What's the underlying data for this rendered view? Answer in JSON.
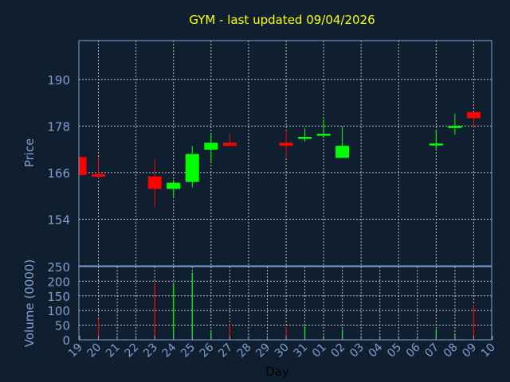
{
  "chart_data": [
    {
      "type": "candlestick",
      "title": "GYM - last updated 09/04/2026",
      "ylabel": "Price",
      "ylim": [
        142,
        200
      ],
      "yticks": [
        154,
        166,
        178,
        190
      ],
      "grid": true,
      "colors": {
        "up": "#00ff00",
        "down": "#ff0000",
        "title": "#ffff00",
        "axis": "#7f9fcf",
        "background": "#0f1f30"
      },
      "categories": [
        "19",
        "20",
        "21",
        "22",
        "23",
        "24",
        "25",
        "26",
        "27",
        "28",
        "29",
        "30",
        "31",
        "01",
        "02",
        "03",
        "04",
        "05",
        "06",
        "07",
        "08",
        "09",
        "10"
      ],
      "candles": [
        {
          "day": "19",
          "open": 170.0,
          "high": 170.0,
          "low": 165.4,
          "close": 165.4
        },
        {
          "day": "20",
          "open": 165.6,
          "high": 170.0,
          "low": 164.4,
          "close": 164.9
        },
        {
          "day": "23",
          "open": 165.0,
          "high": 169.4,
          "low": 157.0,
          "close": 161.8
        },
        {
          "day": "24",
          "open": 161.8,
          "high": 164.1,
          "low": 159.5,
          "close": 163.4
        },
        {
          "day": "25",
          "open": 163.6,
          "high": 172.9,
          "low": 162.2,
          "close": 170.8
        },
        {
          "day": "26",
          "open": 171.9,
          "high": 176.0,
          "low": 168.5,
          "close": 173.7
        },
        {
          "day": "27",
          "open": 173.7,
          "high": 176.0,
          "low": 172.9,
          "close": 172.9
        },
        {
          "day": "30",
          "open": 173.7,
          "high": 176.8,
          "low": 170.0,
          "close": 172.9
        },
        {
          "day": "31",
          "open": 174.8,
          "high": 177.4,
          "low": 174.0,
          "close": 175.2
        },
        {
          "day": "01",
          "open": 175.6,
          "high": 179.8,
          "low": 175.3,
          "close": 176.0
        },
        {
          "day": "02",
          "open": 169.8,
          "high": 177.9,
          "low": 169.8,
          "close": 172.9
        },
        {
          "day": "07",
          "open": 173.0,
          "high": 177.0,
          "low": 171.9,
          "close": 173.5
        },
        {
          "day": "08",
          "open": 177.5,
          "high": 181.2,
          "low": 175.8,
          "close": 178.0
        },
        {
          "day": "09",
          "open": 181.6,
          "high": 181.6,
          "low": 177.5,
          "close": 180.0
        }
      ]
    },
    {
      "type": "bar",
      "ylabel": "Volume (0000)",
      "xlabel": "Day",
      "ylim": [
        0,
        250
      ],
      "yticks": [
        0,
        50,
        100,
        150,
        200,
        250
      ],
      "grid": true,
      "bars": [
        {
          "day": "20",
          "value": 71,
          "dir": "down"
        },
        {
          "day": "23",
          "value": 196,
          "dir": "down"
        },
        {
          "day": "24",
          "value": 191,
          "dir": "up"
        },
        {
          "day": "25",
          "value": 230,
          "dir": "up"
        },
        {
          "day": "26",
          "value": 28,
          "dir": "up"
        },
        {
          "day": "27",
          "value": 52,
          "dir": "down"
        },
        {
          "day": "30",
          "value": 44,
          "dir": "down"
        },
        {
          "day": "31",
          "value": 46,
          "dir": "up"
        },
        {
          "day": "01",
          "value": 14,
          "dir": "up"
        },
        {
          "day": "02",
          "value": 36,
          "dir": "up"
        },
        {
          "day": "07",
          "value": 36,
          "dir": "up"
        },
        {
          "day": "08",
          "value": 17,
          "dir": "up"
        },
        {
          "day": "09",
          "value": 121,
          "dir": "down"
        }
      ]
    }
  ]
}
